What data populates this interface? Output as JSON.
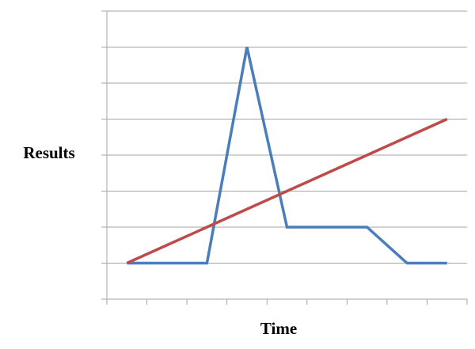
{
  "chart_data": {
    "type": "line",
    "x_label": "Time",
    "y_label": "Results",
    "categories": [
      null,
      null,
      null,
      null,
      null,
      null,
      null,
      null,
      null
    ],
    "series": [
      {
        "color": "#4a7ebb",
        "values": [
          1,
          1,
          1,
          7,
          2,
          2,
          2,
          1,
          1
        ]
      },
      {
        "color": "#be4b48",
        "values": [
          1,
          1.5,
          2,
          2.5,
          3,
          3.5,
          4,
          4.5,
          5
        ]
      }
    ],
    "ylim": [
      0,
      8
    ],
    "yticks": [
      0,
      1,
      2,
      3,
      4,
      5,
      6,
      7,
      8
    ],
    "grid": true
  }
}
